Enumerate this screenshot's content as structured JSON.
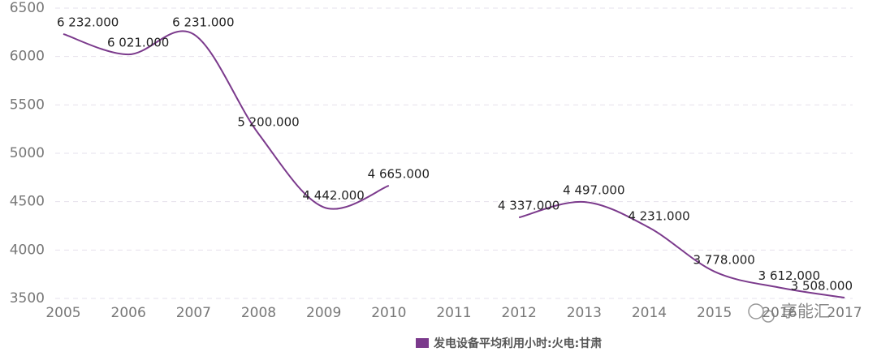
{
  "chart_data": {
    "type": "line",
    "categories": [
      "2005",
      "2006",
      "2007",
      "2008",
      "2009",
      "2010",
      "2011",
      "2012",
      "2013",
      "2014",
      "2015",
      "2016",
      "2017"
    ],
    "series": [
      {
        "name": "发电设备平均利用小时:火电:甘肃",
        "color": "#7b3a8c",
        "values": [
          6232,
          6021,
          6231,
          5200,
          4442,
          4665,
          null,
          4337,
          4497,
          4231,
          3778,
          3612,
          3508
        ],
        "value_labels": [
          "6 232.000",
          "6 021.000",
          "6 231.000",
          "5 200.000",
          "4 442.000",
          "4 665.000",
          null,
          "4 337.000",
          "4 497.000",
          "4 231.000",
          "3 778.000",
          "3 612.000",
          "3 508.000"
        ]
      }
    ],
    "ylim": [
      3500,
      6500
    ],
    "yticks": [
      3500,
      4000,
      4500,
      5000,
      5500,
      6000,
      6500
    ],
    "grid": true,
    "legend": "bottom",
    "watermark": "享能汇"
  }
}
